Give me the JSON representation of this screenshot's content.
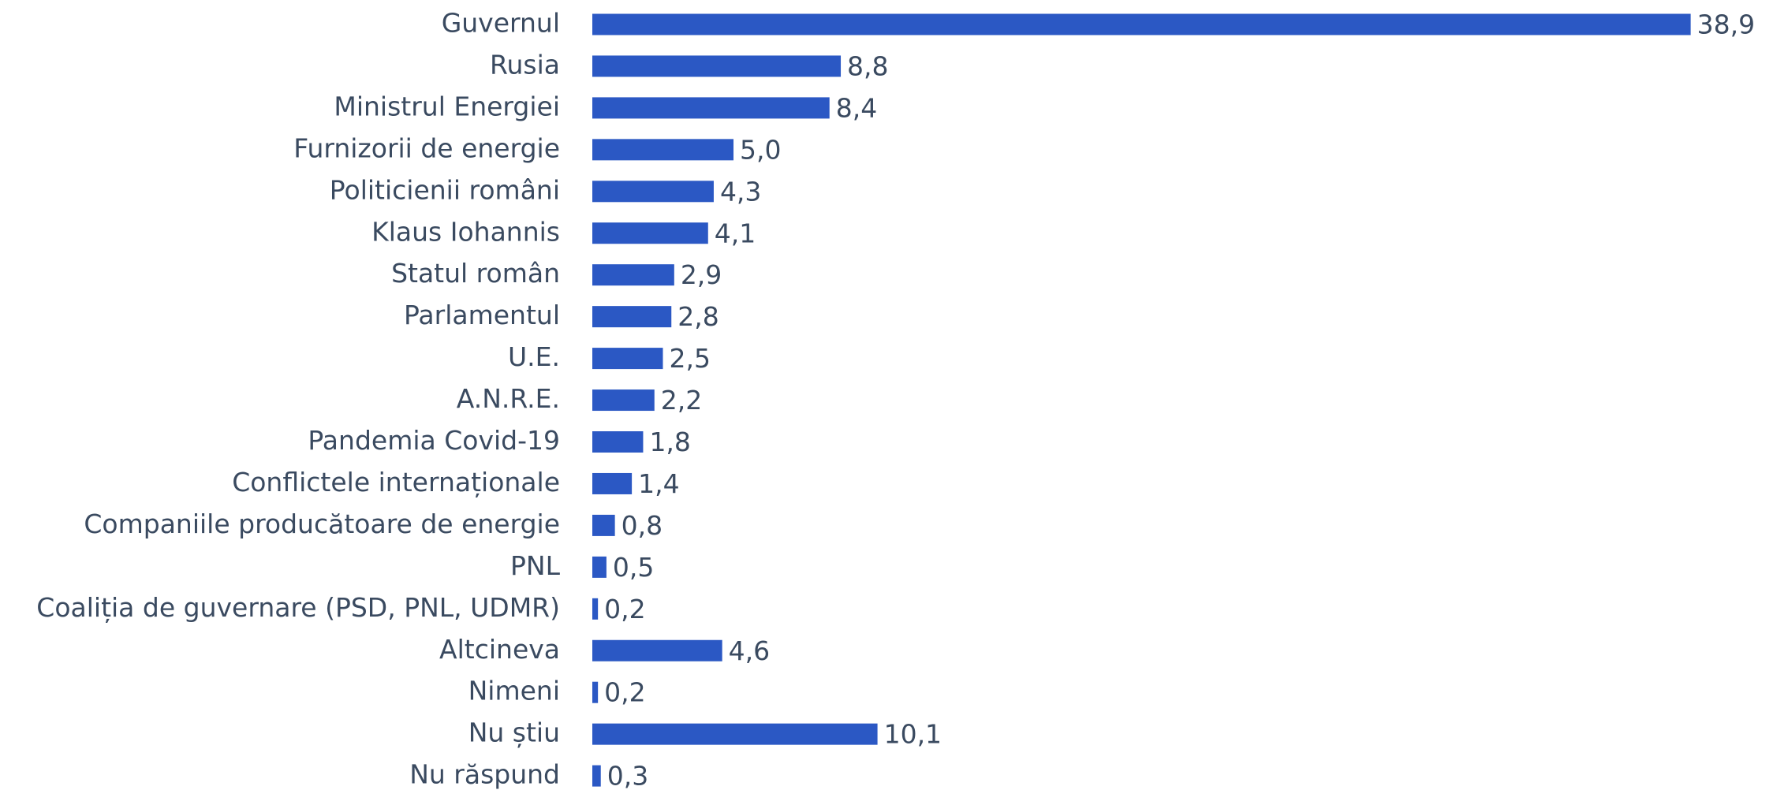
{
  "chart_data": {
    "type": "bar",
    "orientation": "horizontal",
    "color": "#2b58c4",
    "categories": [
      "Guvernul",
      "Rusia",
      "Ministrul Energiei",
      "Furnizorii de energie",
      "Politicienii români",
      "Klaus Iohannis",
      "Statul român",
      "Parlamentul",
      "U.E.",
      "A.N.R.E.",
      "Pandemia Covid-19",
      "Conflictele internaționale",
      "Companiile producătoare de energie",
      "PNL",
      "Coaliția de guvernare (PSD, PNL, UDMR)",
      "Altcineva",
      "Nimeni",
      "Nu știu",
      "Nu răspund"
    ],
    "values": [
      38.9,
      8.8,
      8.4,
      5.0,
      4.3,
      4.1,
      2.9,
      2.8,
      2.5,
      2.2,
      1.8,
      1.4,
      0.8,
      0.5,
      0.2,
      4.6,
      0.2,
      10.1,
      0.3
    ],
    "value_labels": [
      "38,9",
      "8,8",
      "8,4",
      "5,0",
      "4,3",
      "4,1",
      "2,9",
      "2,8",
      "2,5",
      "2,2",
      "1,8",
      "1,4",
      "0,8",
      "0,5",
      "0,2",
      "4,6",
      "0,2",
      "10,1",
      "0,3"
    ]
  }
}
